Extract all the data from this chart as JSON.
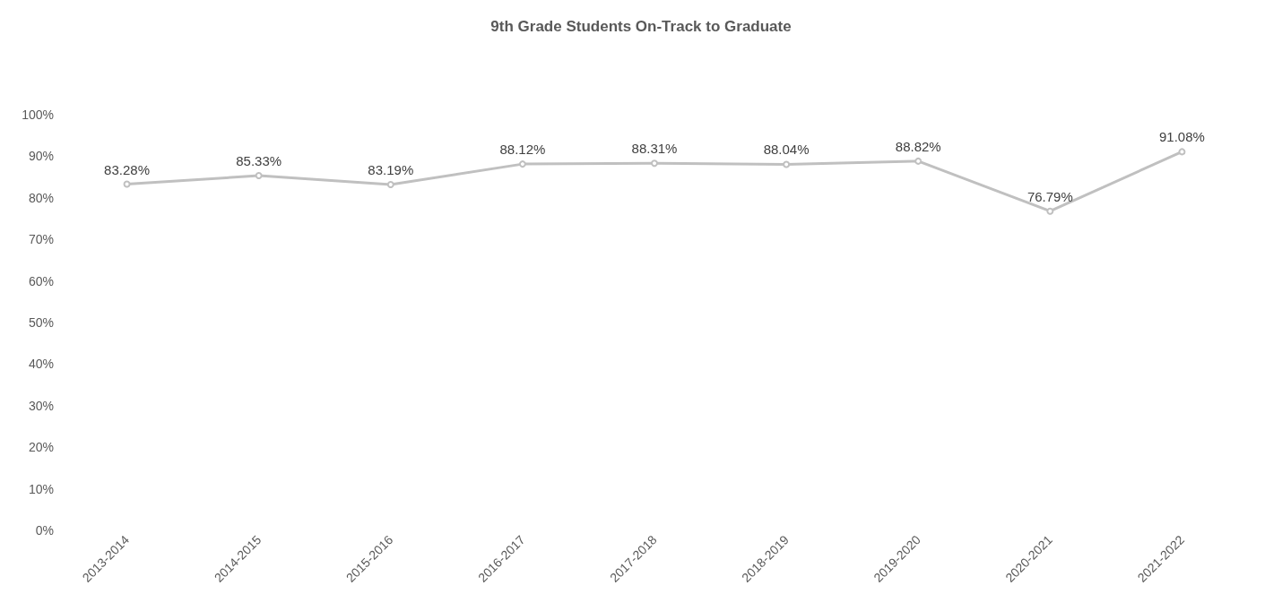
{
  "chart_data": {
    "type": "line",
    "title": "9th Grade Students On-Track to Graduate",
    "categories": [
      "2013-2014",
      "2014-2015",
      "2015-2016",
      "2016-2017",
      "2017-2018",
      "2018-2019",
      "2019-2020",
      "2020-2021",
      "2021-2022"
    ],
    "series": [
      {
        "color": "#c0c0c0",
        "values": [
          83.28,
          85.33,
          83.19,
          88.12,
          88.31,
          88.04,
          88.82,
          76.79,
          91.08
        ],
        "value_labels": [
          "83.28%",
          "85.33%",
          "83.19%",
          "88.12%",
          "88.31%",
          "88.04%",
          "88.82%",
          "76.79%",
          "91.08%"
        ]
      }
    ],
    "ylim": [
      0,
      100
    ],
    "yticks": [
      {
        "value": 0,
        "label": "0%"
      },
      {
        "value": 10,
        "label": "10%"
      },
      {
        "value": 20,
        "label": "20%"
      },
      {
        "value": 30,
        "label": "30%"
      },
      {
        "value": 40,
        "label": "40%"
      },
      {
        "value": 50,
        "label": "50%"
      },
      {
        "value": 60,
        "label": "60%"
      },
      {
        "value": 70,
        "label": "70%"
      },
      {
        "value": 80,
        "label": "80%"
      },
      {
        "value": 90,
        "label": "90%"
      },
      {
        "value": 100,
        "label": "100%"
      }
    ],
    "grid": false,
    "marker": "circle",
    "line_style": "solid"
  }
}
